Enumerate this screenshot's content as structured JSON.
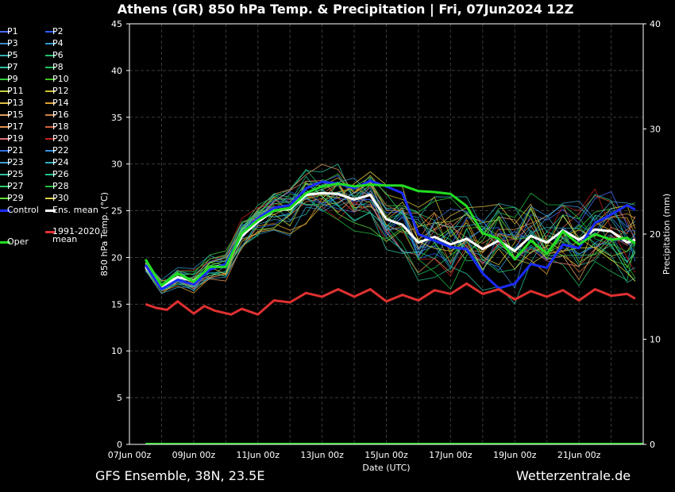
{
  "title": "Athens  (GR)  850 hPa Temp. & Precipitation | Fri, 07Jun2024 12Z",
  "footer": {
    "model": "GFS Ensemble, 38N, 23.5E",
    "site": "Wetterzentrale.de"
  },
  "colors": {
    "background": "#000000",
    "grid": "#3a3a3a",
    "ens_mean": "#ffffff",
    "control": "#1a2cff",
    "oper": "#22dd22",
    "climate": "#e03030"
  },
  "legend": {
    "members": [
      {
        "label": "P1",
        "color": "#4a6cff"
      },
      {
        "label": "P2",
        "color": "#2a5cff"
      },
      {
        "label": "P3",
        "color": "#3a8acc"
      },
      {
        "label": "P4",
        "color": "#2e9ad0"
      },
      {
        "label": "P5",
        "color": "#30b0b0"
      },
      {
        "label": "P6",
        "color": "#20c070"
      },
      {
        "label": "P7",
        "color": "#2ac0a0"
      },
      {
        "label": "P8",
        "color": "#1ec060"
      },
      {
        "label": "P9",
        "color": "#30d040"
      },
      {
        "label": "P10",
        "color": "#40c020"
      },
      {
        "label": "P11",
        "color": "#c0d040"
      },
      {
        "label": "P12",
        "color": "#d0c030"
      },
      {
        "label": "P13",
        "color": "#e0c040"
      },
      {
        "label": "P14",
        "color": "#e0a030"
      },
      {
        "label": "P15",
        "color": "#e0a060"
      },
      {
        "label": "P16",
        "color": "#d08040"
      },
      {
        "label": "P17",
        "color": "#e09050"
      },
      {
        "label": "P18",
        "color": "#d06040"
      },
      {
        "label": "P19",
        "color": "#e07070"
      },
      {
        "label": "P20",
        "color": "#c02020"
      },
      {
        "label": "P21",
        "color": "#3070e0"
      },
      {
        "label": "P22",
        "color": "#3090e0"
      },
      {
        "label": "P23",
        "color": "#40a0d0"
      },
      {
        "label": "P24",
        "color": "#30b0c0"
      },
      {
        "label": "P25",
        "color": "#30c0a0"
      },
      {
        "label": "P26",
        "color": "#20c090"
      },
      {
        "label": "P27",
        "color": "#30d070"
      },
      {
        "label": "P28",
        "color": "#20c040"
      },
      {
        "label": "P29",
        "color": "#60e040"
      },
      {
        "label": "P30",
        "color": "#e0d040"
      }
    ],
    "control": "Control",
    "ens_mean": "Ens. mean",
    "climate": "1991-2020\nmean",
    "oper": "Oper"
  },
  "chart_data": {
    "type": "line",
    "title": "Athens  (GR)  850 hPa Temp. & Precipitation | Fri, 07Jun2024 12Z",
    "xlabel": "Date (UTC)",
    "ylabel": "850 hPa Temp. (°C)",
    "y2label": "Precipitation (mm)",
    "xlim_hours": [
      0,
      384
    ],
    "ylim": [
      0,
      45
    ],
    "y2lim": [
      0,
      40
    ],
    "yticks": [
      0,
      5,
      10,
      15,
      20,
      25,
      30,
      35,
      40,
      45
    ],
    "y2ticks": [
      0,
      10,
      20,
      30,
      40
    ],
    "xtick_labels": [
      "07Jun 00z",
      "09Jun 00z",
      "11Jun 00z",
      "13Jun 00z",
      "15Jun 00z",
      "17Jun 00z",
      "19Jun 00z",
      "21Jun 00z"
    ],
    "xtick_hours": [
      0,
      48,
      96,
      144,
      192,
      240,
      288,
      336
    ],
    "grid": true,
    "series": [
      {
        "name": "Ens. mean",
        "x": [
          12,
          24,
          36,
          48,
          60,
          72,
          84,
          96,
          108,
          120,
          132,
          144,
          156,
          168,
          180,
          192,
          204,
          216,
          228,
          240,
          252,
          264,
          276,
          288,
          300,
          312,
          324,
          336,
          348,
          360,
          372,
          378
        ],
        "y": [
          19.0,
          16.9,
          17.9,
          17.5,
          18.9,
          19.2,
          22.3,
          23.8,
          25.0,
          25.2,
          26.7,
          26.9,
          26.8,
          26.2,
          26.7,
          24.1,
          23.5,
          21.6,
          22.2,
          21.4,
          22.0,
          20.9,
          21.8,
          20.7,
          22.3,
          21.6,
          22.9,
          21.9,
          23.0,
          22.8,
          21.6,
          21.9
        ]
      },
      {
        "name": "Control",
        "x": [
          12,
          24,
          36,
          48,
          60,
          72,
          84,
          96,
          108,
          120,
          132,
          144,
          156,
          168,
          180,
          192,
          204,
          216,
          228,
          240,
          252,
          264,
          276,
          288,
          300,
          312,
          324,
          336,
          348,
          360,
          372,
          378
        ],
        "y": [
          19.2,
          16.6,
          17.6,
          17.1,
          18.7,
          19.3,
          22.6,
          24.2,
          25.3,
          25.6,
          27.4,
          28.1,
          27.9,
          27.4,
          28.2,
          27.6,
          26.9,
          22.5,
          21.8,
          21.1,
          20.9,
          18.3,
          16.7,
          17.2,
          19.3,
          18.9,
          21.4,
          21.0,
          23.7,
          24.6,
          25.6,
          25.1
        ]
      },
      {
        "name": "Oper",
        "x": [
          12,
          24,
          36,
          48,
          60,
          72,
          84,
          96,
          108,
          120,
          132,
          144,
          156,
          168,
          180,
          192,
          204,
          216,
          228,
          240,
          252,
          264,
          276,
          288,
          300,
          312,
          324,
          336,
          348,
          360,
          372,
          378
        ],
        "y": [
          19.8,
          17.0,
          18.3,
          17.4,
          19.0,
          19.0,
          22.6,
          24.0,
          25.0,
          25.3,
          26.9,
          27.6,
          27.9,
          27.6,
          27.8,
          27.7,
          27.7,
          27.1,
          27.0,
          26.8,
          25.5,
          22.6,
          22.0,
          19.8,
          21.8,
          20.4,
          22.8,
          21.4,
          22.5,
          21.9,
          22.1,
          21.5
        ]
      },
      {
        "name": "1991-2020 mean",
        "x": [
          12,
          20,
          28,
          36,
          48,
          56,
          64,
          76,
          84,
          96,
          108,
          120,
          132,
          144,
          156,
          168,
          180,
          192,
          204,
          216,
          228,
          240,
          252,
          264,
          276,
          288,
          300,
          312,
          324,
          336,
          348,
          360,
          372,
          378
        ],
        "y": [
          15.0,
          14.6,
          14.4,
          15.3,
          14.0,
          14.8,
          14.3,
          13.9,
          14.5,
          13.9,
          15.4,
          15.2,
          16.2,
          15.8,
          16.6,
          15.8,
          16.6,
          15.3,
          16.0,
          15.4,
          16.5,
          16.1,
          17.2,
          16.1,
          16.6,
          15.5,
          16.4,
          15.8,
          16.5,
          15.4,
          16.6,
          15.9,
          16.1,
          15.6
        ]
      }
    ]
  }
}
